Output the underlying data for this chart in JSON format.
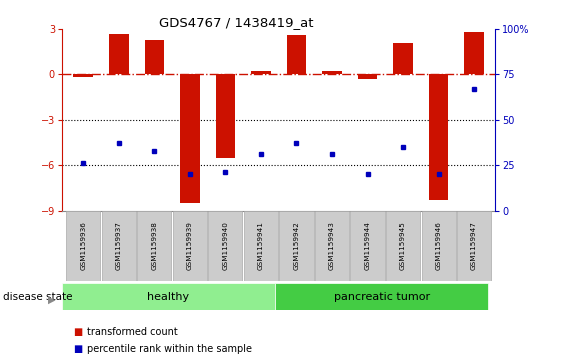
{
  "title": "GDS4767 / 1438419_at",
  "samples": [
    "GSM1159936",
    "GSM1159937",
    "GSM1159938",
    "GSM1159939",
    "GSM1159940",
    "GSM1159941",
    "GSM1159942",
    "GSM1159943",
    "GSM1159944",
    "GSM1159945",
    "GSM1159946",
    "GSM1159947"
  ],
  "transformed_count": [
    -0.15,
    2.7,
    2.3,
    -8.5,
    -5.5,
    0.2,
    2.6,
    0.2,
    -0.3,
    2.1,
    -8.3,
    2.8
  ],
  "percentile_rank": [
    26,
    37,
    33,
    20,
    21,
    31,
    37,
    31,
    20,
    35,
    20,
    67
  ],
  "disease_state": [
    "healthy",
    "healthy",
    "healthy",
    "healthy",
    "healthy",
    "healthy",
    "pancreatic tumor",
    "pancreatic tumor",
    "pancreatic tumor",
    "pancreatic tumor",
    "pancreatic tumor",
    "pancreatic tumor"
  ],
  "bar_color": "#cc1100",
  "dot_color": "#0000bb",
  "ylim_left": [
    -9,
    3
  ],
  "ylim_right": [
    0,
    100
  ],
  "yticks_left": [
    -9,
    -6,
    -3,
    0,
    3
  ],
  "yticks_right": [
    0,
    25,
    50,
    75,
    100
  ],
  "hline_y": 0,
  "hline_color": "#cc1100",
  "dotline_y": [
    -3,
    -6
  ],
  "dotline_color": "black",
  "healthy_color": "#90ee90",
  "tumor_color": "#44cc44",
  "label_bg_color": "#cccccc",
  "label_edge_color": "#aaaaaa",
  "healthy_label": "healthy",
  "tumor_label": "pancreatic tumor",
  "disease_state_label": "disease state",
  "legend_red_label": "transformed count",
  "legend_blue_label": "percentile rank within the sample",
  "n_healthy": 6,
  "n_tumor": 6
}
